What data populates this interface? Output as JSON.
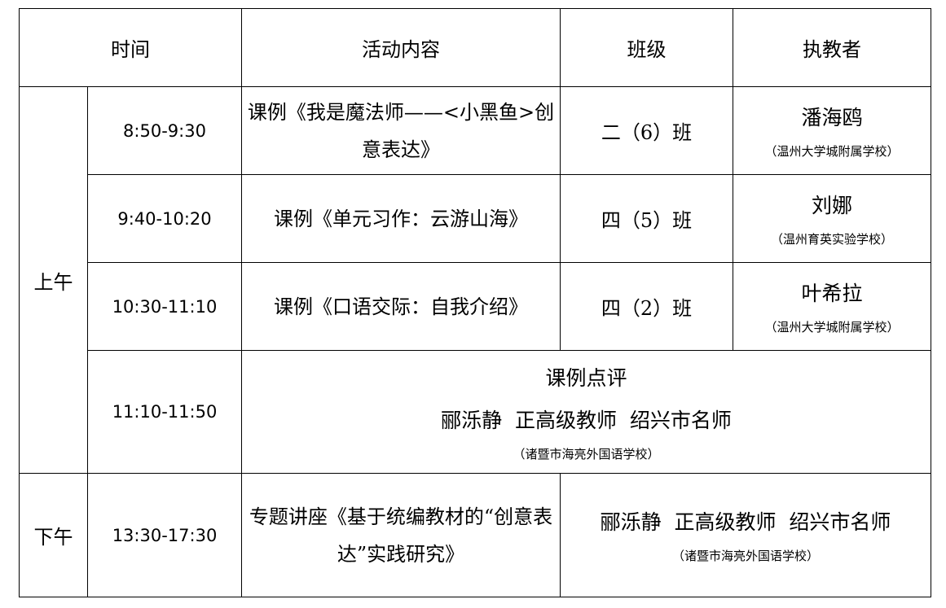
{
  "headers": [
    "时间",
    "活动内容",
    "班级",
    "执教者"
  ],
  "morning_label": "上午",
  "afternoon_label": "下午",
  "rows": [
    {
      "time": "8:50-9:30",
      "activity": "课例《我是魔法师——<小黑鱼>创意表达》",
      "class": "二（6）班",
      "teacher": "潘海鸥",
      "school": "（温州大学城附属学校）"
    },
    {
      "time": "9:40-10:20",
      "activity": "课例《单元习作：云游山海》",
      "class": "四（5）班",
      "teacher": "刘娜",
      "school": "（温州育英实验学校）"
    },
    {
      "time": "10:30-11:10",
      "activity": "课例《口语交际：自我介绍》",
      "class": "四（2）班",
      "teacher": "叶希拉",
      "school": "（温州大学城附属学校）"
    }
  ],
  "review": {
    "time": "11:10-11:50",
    "title": "课例点评",
    "speaker": "郦泺静  正高级教师  绍兴市名师",
    "school": "（诸暨市海亮外国语学校）"
  },
  "lecture": {
    "time": "13:30-17:30",
    "activity": "专题讲座《基于统编教材的“创意表达”实践研究》",
    "speaker": "郦泺静  正高级教师  绍兴市名师",
    "school": "（诸暨市海亮外国语学校）"
  }
}
